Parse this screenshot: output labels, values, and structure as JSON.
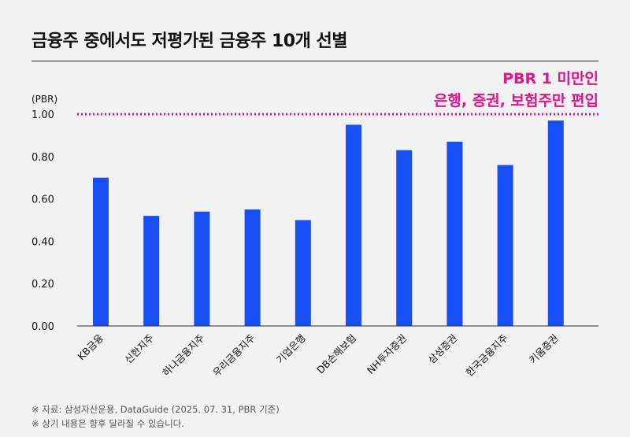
{
  "header": {
    "title": "금융주 중에서도 저평가된 금융주 10개 선별"
  },
  "annotation": {
    "line1": "PBR 1 미만인",
    "line2": "은행, 증권, 보험주만 편입"
  },
  "footnotes": [
    "※ 자료: 삼성자산운용, DataGuide (2025. 07. 31, PBR 기준)",
    "※ 상기 내용은 향후 달라질 수 있습니다."
  ],
  "chart_data": {
    "type": "bar",
    "title": "금융주 중에서도 저평가된 금융주 10개 선별",
    "ylabel": "(PBR)",
    "xlabel": "",
    "categories": [
      "KB금융",
      "신한지주",
      "하나금융지주",
      "우리금융지주",
      "기업은행",
      "DB손해보험",
      "NH투자증권",
      "삼성증권",
      "한국금융지주",
      "키움증권"
    ],
    "values": [
      0.7,
      0.52,
      0.54,
      0.55,
      0.5,
      0.95,
      0.83,
      0.87,
      0.76,
      0.97
    ],
    "ylim": [
      0,
      1.0
    ],
    "yticks": [
      "0.00",
      "0.20",
      "0.40",
      "0.60",
      "0.80",
      "1.00"
    ],
    "reference_line": 1.0,
    "grid": false,
    "colors": {
      "bar": "#1650f5",
      "reference": "#e0158a",
      "axis": "#333333"
    }
  }
}
